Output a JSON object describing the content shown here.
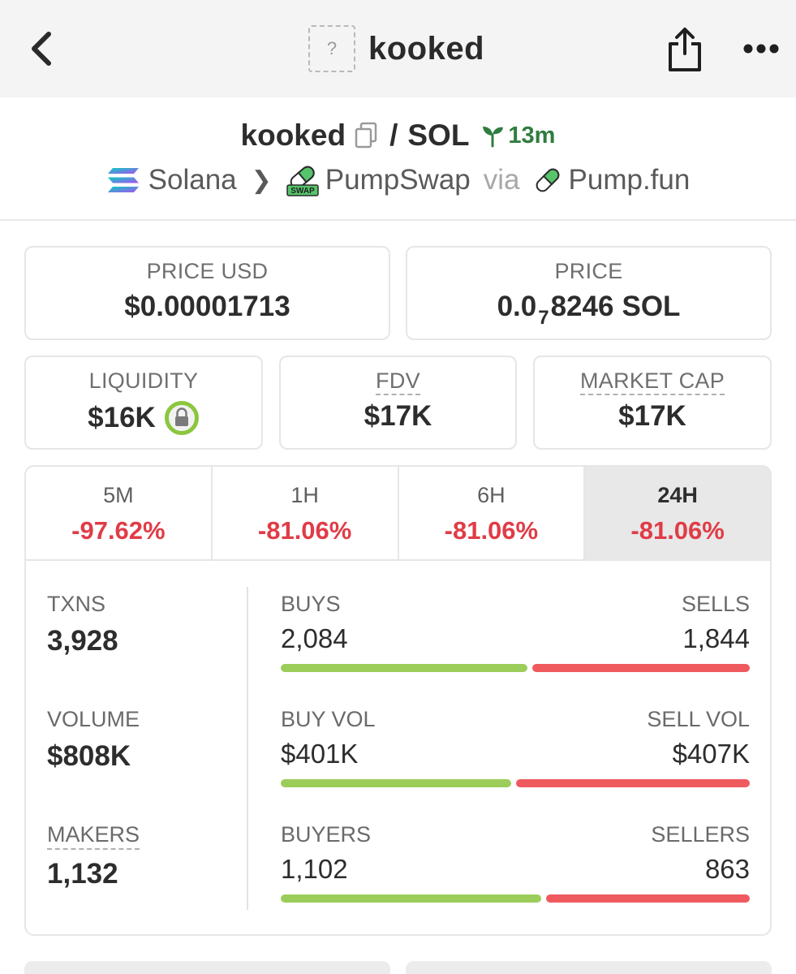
{
  "topbar": {
    "title": "kooked",
    "placeholder_symbol": "?",
    "icons": {
      "back": "chevron-left-icon",
      "share": "share-icon",
      "more": "more-horizontal-icon"
    }
  },
  "pair": {
    "base": "kooked",
    "separator": "/",
    "quote": "SOL",
    "age": "13m"
  },
  "chain": {
    "name": "Solana",
    "dex": "PumpSwap",
    "via_label": "via",
    "launchpad": "Pump.fun",
    "swap_badge": "SWAP"
  },
  "price_usd": {
    "label": "PRICE USD",
    "value": "$0.00001713"
  },
  "price_native": {
    "label": "PRICE",
    "prefix": "0.0",
    "zero_count": "7",
    "digits": "8246",
    "unit": "SOL"
  },
  "liquidity": {
    "label": "LIQUIDITY",
    "value": "$16K"
  },
  "fdv": {
    "label": "FDV",
    "value": "$17K"
  },
  "market_cap": {
    "label": "MARKET CAP",
    "value": "$17K"
  },
  "changes": [
    {
      "label": "5M",
      "value": "-97.62%"
    },
    {
      "label": "1H",
      "value": "-81.06%"
    },
    {
      "label": "6H",
      "value": "-81.06%"
    },
    {
      "label": "24H",
      "value": "-81.06%"
    }
  ],
  "active_tab": "24H",
  "stats": {
    "txns": {
      "label": "TXNS",
      "value": "3,928"
    },
    "volume": {
      "label": "VOLUME",
      "value": "$808K"
    },
    "makers": {
      "label": "MAKERS",
      "value": "1,132"
    }
  },
  "bars": {
    "txns": {
      "left_label": "BUYS",
      "left_value": "2,084",
      "right_label": "SELLS",
      "right_value": "1,844",
      "buy_fraction": 0.5306
    },
    "volume": {
      "left_label": "BUY VOL",
      "left_value": "$401K",
      "right_label": "SELL VOL",
      "right_value": "$407K",
      "buy_fraction": 0.4963
    },
    "makers": {
      "left_label": "BUYERS",
      "left_value": "1,102",
      "right_label": "SELLERS",
      "right_value": "863",
      "buy_fraction": 0.5608
    }
  },
  "colors": {
    "negative": "#e03c47",
    "buy_bar": "#9ccd5b",
    "sell_bar": "#ef5a5f",
    "age_green": "#2f7d3f",
    "lock_green": "#8cc63f"
  }
}
